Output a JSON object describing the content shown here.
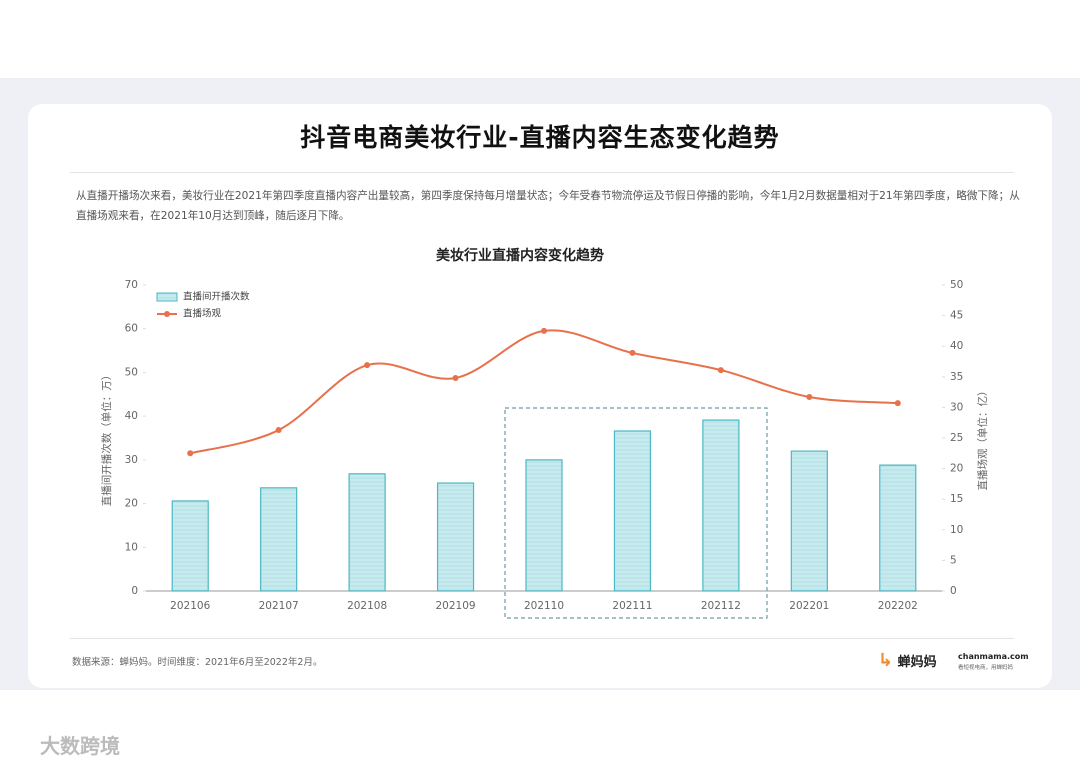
{
  "header": {
    "title": "抖音电商美妆行业-直播内容生态变化趋势"
  },
  "description": "从直播开播场次来看，美妆行业在2021年第四季度直播内容产出量较高，第四季度保持每月增量状态；今年受春节物流停运及节假日停播的影响，今年1月2月数据量相对于21年第四季度，略微下降；从直播场观来看，在2021年10月达到顶峰，随后逐月下降。",
  "chart_data": {
    "type": "bar",
    "title": "美妆行业直播内容变化趋势",
    "categories": [
      "202106",
      "202107",
      "202108",
      "202109",
      "202110",
      "202111",
      "202112",
      "202201",
      "202202"
    ],
    "series": [
      {
        "name": "直播间开播次数",
        "type": "bar",
        "color": "#4bb8c4",
        "values": [
          20.6,
          23.6,
          26.8,
          24.7,
          30.0,
          36.6,
          39.1,
          32.0,
          28.8
        ]
      },
      {
        "name": "直播场观",
        "type": "line",
        "axis": "y2",
        "color": "#e8704a",
        "values": [
          22.5,
          26.3,
          36.9,
          34.8,
          42.5,
          38.9,
          36.1,
          31.7,
          30.7
        ]
      }
    ],
    "ylabel": "直播间开播次数（单位：万）",
    "y2label": "直播场观（单位：亿）",
    "ylim": [
      0,
      70
    ],
    "yticks": [
      0,
      10,
      20,
      30,
      40,
      50,
      60,
      70
    ],
    "y2lim": [
      0,
      50
    ],
    "y2ticks": [
      0,
      5,
      10,
      15,
      20,
      25,
      30,
      35,
      40,
      45,
      50
    ],
    "legend": "upper left"
  },
  "footer": {
    "source": "数据来源：蝉妈妈。时间维度：2021年6月至2022年2月。",
    "brand": "蝉妈妈",
    "site": "chanmama.com",
    "slogan": "看短视电商，用蝉妈妈"
  },
  "watermark": "大数跨境"
}
